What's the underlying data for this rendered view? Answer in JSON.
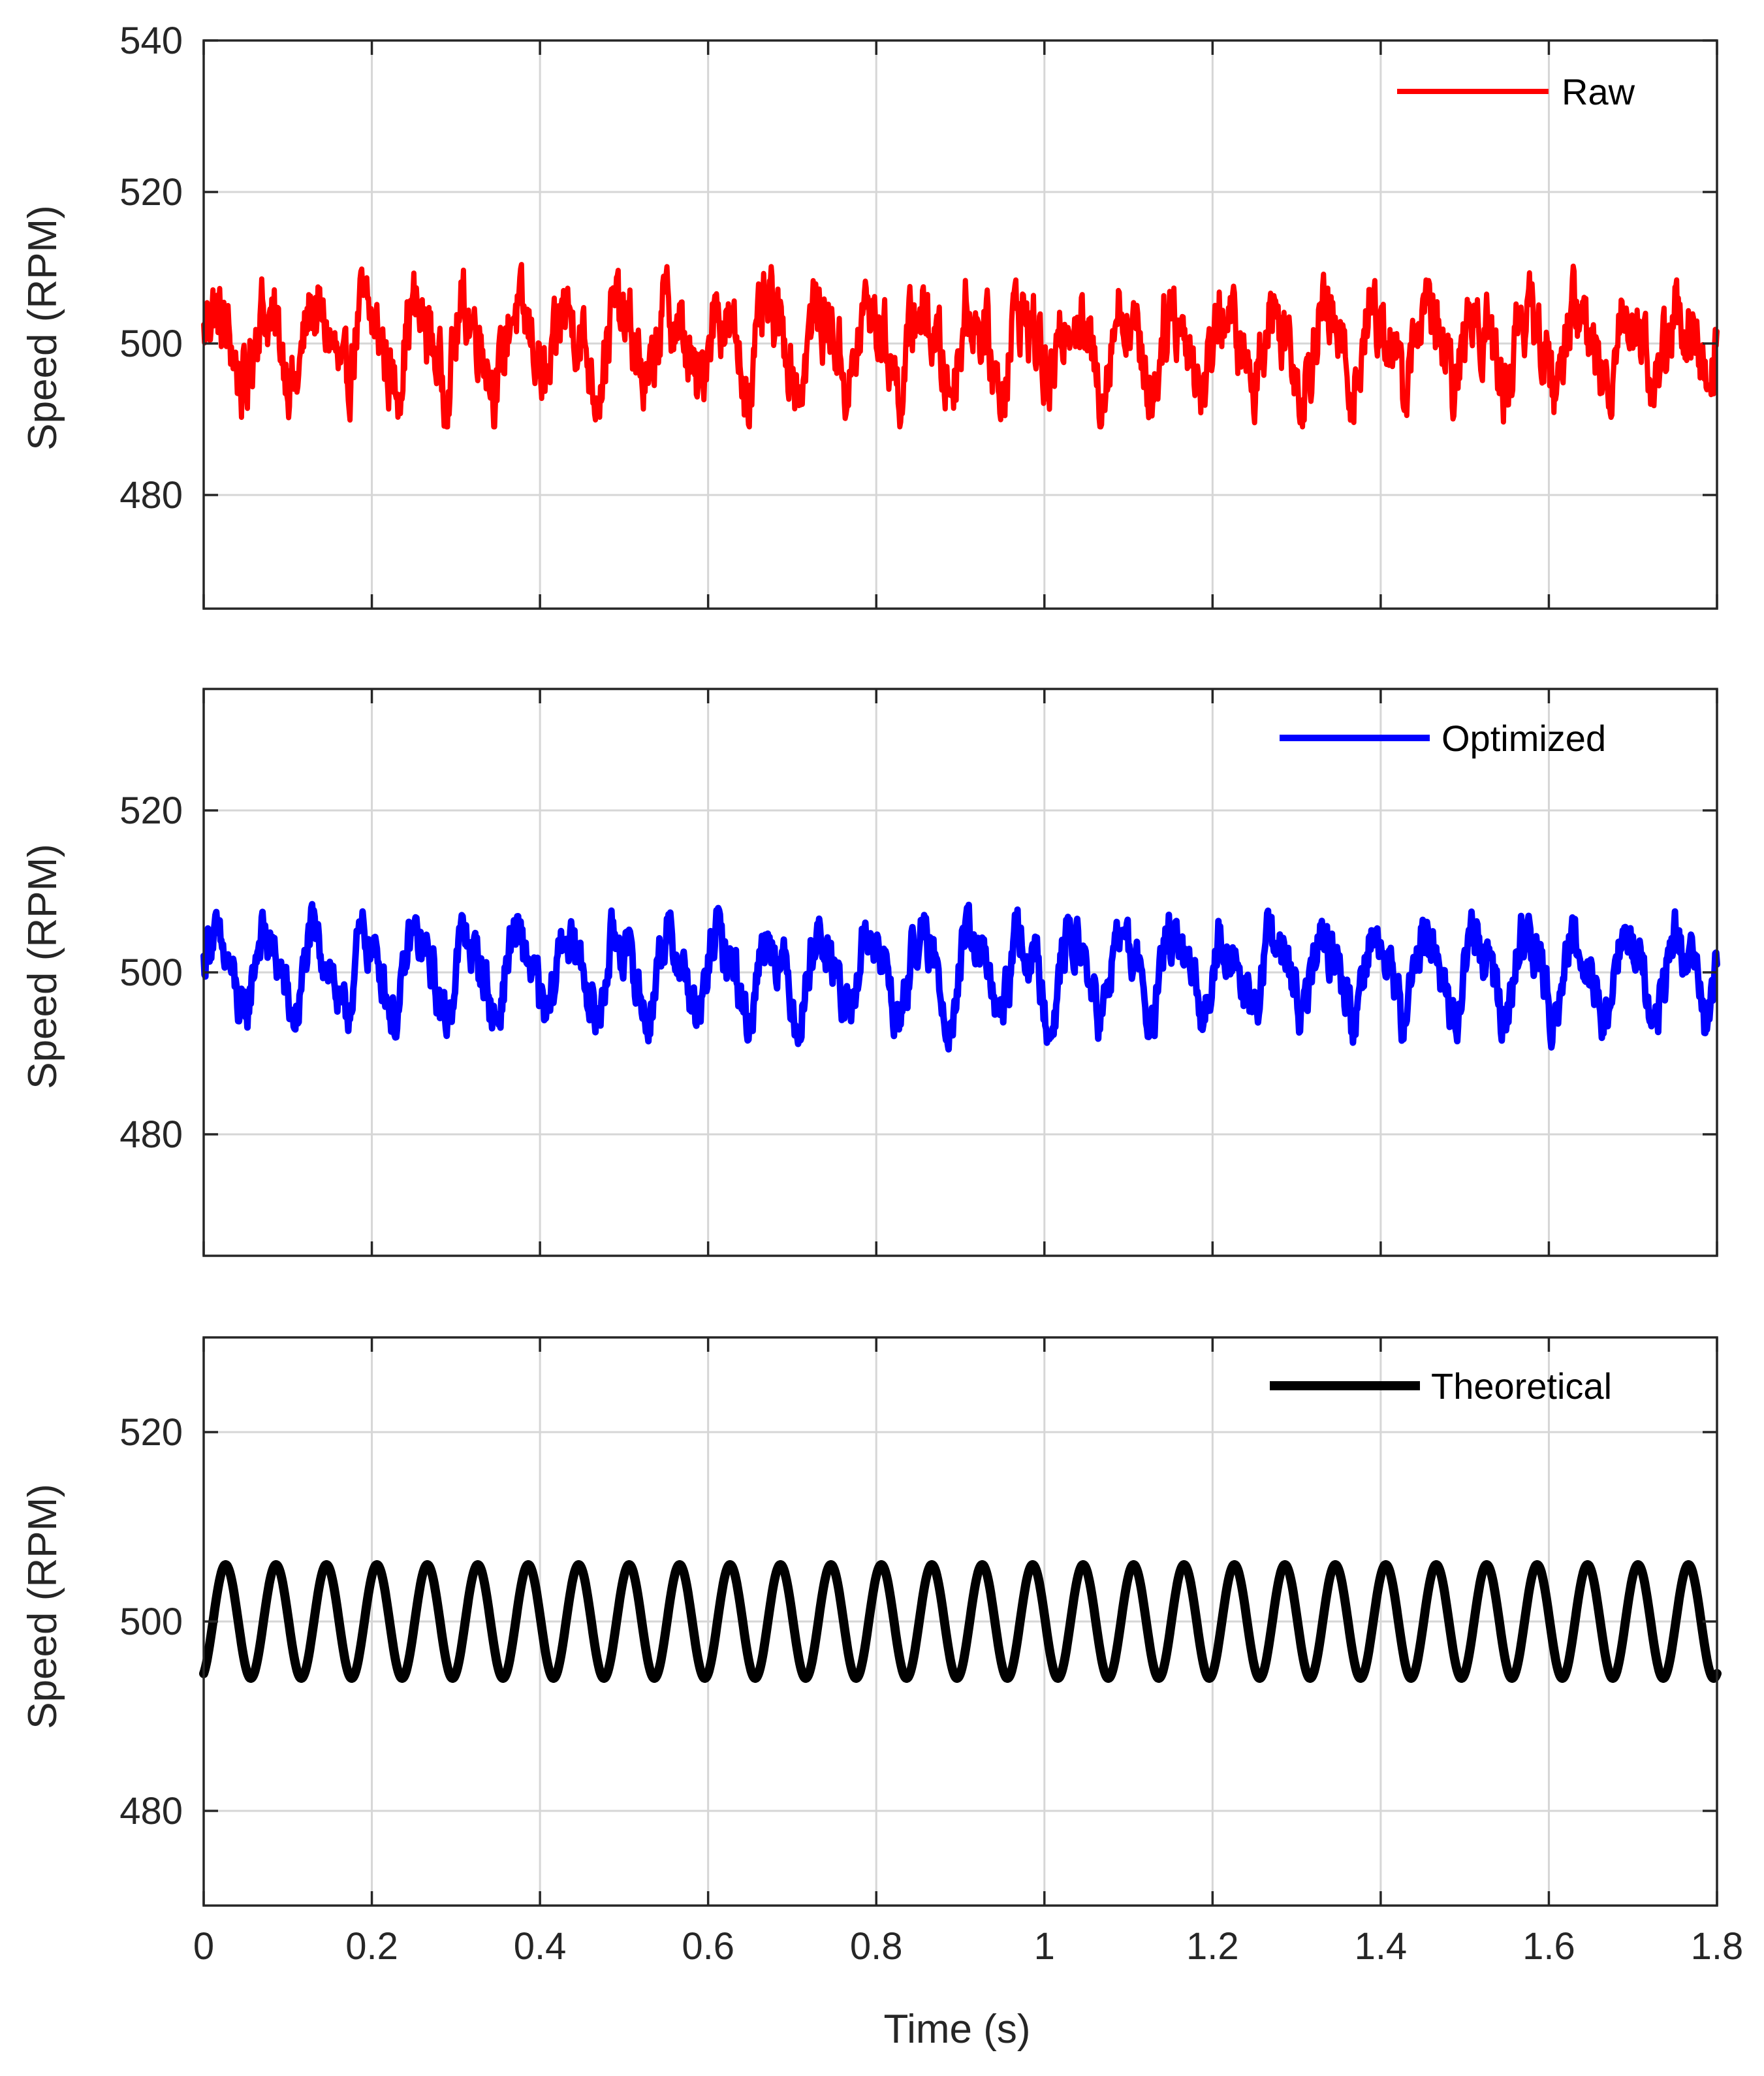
{
  "chart_data": [
    {
      "type": "line",
      "xlabel": "",
      "ylabel": "Speed (RPM)",
      "xlim": [
        0,
        1.8
      ],
      "ylim": [
        465,
        540
      ],
      "xticks": [
        0,
        0.2,
        0.4,
        0.6,
        0.8,
        1,
        1.2,
        1.4,
        1.6,
        1.8
      ],
      "xtick_labels": [],
      "yticks": [
        480,
        500,
        520,
        540
      ],
      "ytick_labels": [
        "480",
        "500",
        "520",
        "540"
      ],
      "grid": true,
      "legend_position": "top-right",
      "series": [
        {
          "name": "Raw",
          "color": "#ff0000",
          "mean": 500,
          "periodic_amplitude": 5.5,
          "period_s": 0.06,
          "noise_amplitude": 4,
          "min": 489,
          "max": 514.5,
          "x": [
            0,
            0.03,
            0.06,
            0.09,
            0.12,
            0.15,
            0.18,
            0.21,
            0.24,
            0.27,
            0.3,
            0.33,
            0.36,
            0.39,
            0.42,
            0.45,
            0.48,
            0.51,
            0.54,
            0.57,
            0.6,
            0.63,
            0.66,
            0.69,
            0.72,
            0.75,
            0.78,
            0.81,
            0.84,
            0.87,
            0.9,
            0.93,
            0.96,
            0.99,
            1.02,
            1.05,
            1.08,
            1.11,
            1.14,
            1.17,
            1.2,
            1.23,
            1.26,
            1.29,
            1.32,
            1.35,
            1.38,
            1.41,
            1.44,
            1.47,
            1.5,
            1.53,
            1.56,
            1.59,
            1.62,
            1.65,
            1.68,
            1.71,
            1.74,
            1.77,
            1.8
          ],
          "y": [
            500,
            507,
            494,
            508,
            493,
            506,
            494,
            508,
            493,
            507,
            492,
            508,
            494,
            507,
            492,
            507,
            493,
            508,
            494,
            507,
            492,
            507,
            494,
            508,
            493,
            507,
            494,
            508,
            493,
            507,
            492,
            508,
            494,
            507,
            492,
            507,
            494,
            507,
            493,
            508,
            494,
            508,
            493,
            507,
            492,
            508,
            494,
            507,
            493,
            508,
            494,
            507,
            492,
            507,
            494,
            508,
            493,
            507,
            494,
            508,
            495
          ]
        }
      ]
    },
    {
      "type": "line",
      "xlabel": "",
      "ylabel": "Speed (RPM)",
      "xlim": [
        0,
        1.8
      ],
      "ylim": [
        465,
        535
      ],
      "xticks": [
        0,
        0.2,
        0.4,
        0.6,
        0.8,
        1,
        1.2,
        1.4,
        1.6,
        1.8
      ],
      "xtick_labels": [],
      "yticks": [
        480,
        500,
        520
      ],
      "ytick_labels": [
        "480",
        "500",
        "520"
      ],
      "grid": true,
      "legend_position": "top-right",
      "series": [
        {
          "name": "Optimized",
          "color": "#0000ff",
          "mean": 500,
          "periodic_amplitude": 5.5,
          "period_s": 0.06,
          "noise_amplitude": 2.5,
          "min": 490.5,
          "max": 510.5,
          "x": [
            0,
            0.03,
            0.06,
            0.09,
            0.12,
            0.15,
            0.18,
            0.21,
            0.24,
            0.27,
            0.3,
            0.33,
            0.36,
            0.39,
            0.42,
            0.45,
            0.48,
            0.51,
            0.54,
            0.57,
            0.6,
            0.63,
            0.66,
            0.69,
            0.72,
            0.75,
            0.78,
            0.81,
            0.84,
            0.87,
            0.9,
            0.93,
            0.96,
            0.99,
            1.02,
            1.05,
            1.08,
            1.11,
            1.14,
            1.17,
            1.2,
            1.23,
            1.26,
            1.29,
            1.32,
            1.35,
            1.38,
            1.41,
            1.44,
            1.47,
            1.5,
            1.53,
            1.56,
            1.59,
            1.62,
            1.65,
            1.68,
            1.71,
            1.74,
            1.77,
            1.8
          ],
          "y": [
            496,
            506,
            494,
            507,
            494,
            507,
            494,
            507,
            494,
            507,
            494,
            507,
            494,
            506,
            494,
            507,
            494,
            506,
            494,
            507,
            494,
            506,
            494,
            507,
            494,
            507,
            494,
            507,
            494,
            507,
            494,
            507,
            494,
            507,
            494,
            507,
            494,
            507,
            493,
            507,
            494,
            507,
            494,
            507,
            494,
            507,
            494,
            506,
            494,
            507,
            494,
            507,
            494,
            506,
            494,
            507,
            494,
            506,
            494,
            506,
            495
          ]
        }
      ]
    },
    {
      "type": "line",
      "xlabel": "Time (s)",
      "ylabel": "Speed (RPM)",
      "xlim": [
        0,
        1.8
      ],
      "ylim": [
        470,
        530
      ],
      "xticks": [
        0,
        0.2,
        0.4,
        0.6,
        0.8,
        1,
        1.2,
        1.4,
        1.6,
        1.8
      ],
      "xtick_labels": [
        "0",
        "0.2",
        "0.4",
        "0.6",
        "0.8",
        "1",
        "1.2",
        "1.4",
        "1.6",
        "1.8"
      ],
      "yticks": [
        480,
        500,
        520
      ],
      "ytick_labels": [
        "480",
        "500",
        "520"
      ],
      "grid": true,
      "legend_position": "top-right",
      "series": [
        {
          "name": "Theoretical",
          "color": "#000000",
          "mean": 500,
          "amplitude": 6,
          "period_s": 0.06,
          "x": [
            0,
            0.015,
            0.03,
            0.045,
            0.06,
            0.075,
            0.09,
            0.105,
            0.12,
            0.135,
            0.15
          ],
          "y": [
            494.5,
            501,
            506,
            500,
            494,
            500,
            506,
            500,
            494,
            500,
            506
          ]
        }
      ]
    }
  ]
}
